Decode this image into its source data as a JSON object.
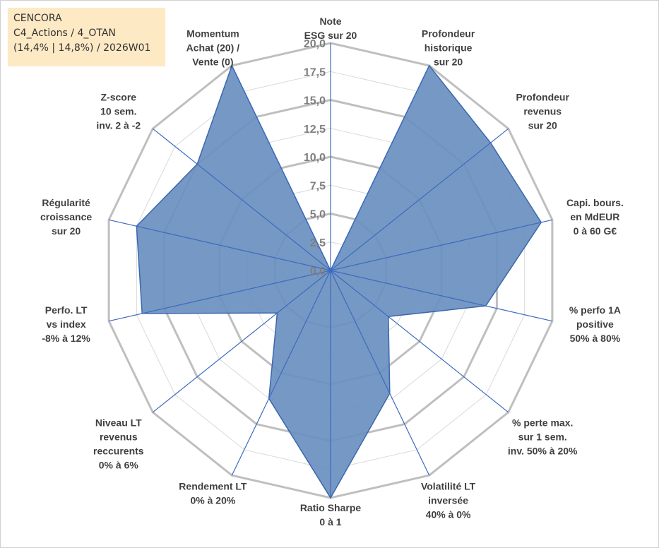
{
  "info": {
    "line1": "CENCORA",
    "line2": "C4_Actions / 4_OTAN",
    "line3": "(14,4% | 14,8%) / 2026W01"
  },
  "colors": {
    "fill": "#6a8fbf",
    "stroke": "#3a67ad",
    "spoke": "#3b6bbf",
    "ring_major": "#bfbfbf",
    "ring_minor": "#d9d9d9",
    "tick_text": "#7f7f7f",
    "label_text": "#404040",
    "info_bg": "#fde9c4"
  },
  "chart_data": {
    "type": "radar",
    "title": "",
    "rmin": 0,
    "rmax": 20,
    "major_step": 5,
    "minor_step": 2.5,
    "tick_labels": [
      "0,0",
      "2,5",
      "5,0",
      "7,5",
      "10,0",
      "12,5",
      "15,0",
      "17,5",
      "20,0"
    ],
    "series": [
      {
        "name": "CENCORA",
        "axes": [
          {
            "label": [
              "Note",
              "ESG sur 20"
            ],
            "value": 0
          },
          {
            "label": [
              "Profondeur",
              "historique",
              "sur 20"
            ],
            "value": 20
          },
          {
            "label": [
              "Profondeur",
              "revenus",
              "sur 20"
            ],
            "value": 18
          },
          {
            "label": [
              "Capi. bours.",
              "en MdEUR",
              "0 à 60 G€"
            ],
            "value": 19
          },
          {
            "label": [
              "% perfo 1A",
              "positive",
              "50% à 80%"
            ],
            "value": 14
          },
          {
            "label": [
              "% perte max.",
              "sur 1 sem.",
              "inv. 50% à 20%"
            ],
            "value": 6.5
          },
          {
            "label": [
              "Volatilité LT",
              "inversée",
              "40% à 0%"
            ],
            "value": 12
          },
          {
            "label": [
              "Ratio Sharpe",
              "0 à 1"
            ],
            "value": 20
          },
          {
            "label": [
              "Rendement LT",
              "0% à 20%"
            ],
            "value": 12.5
          },
          {
            "label": [
              "Niveau LT",
              "revenus",
              "reccurents",
              "0% à 6%"
            ],
            "value": 6
          },
          {
            "label": [
              "Perfo. LT",
              "vs index",
              "-8% à 12%"
            ],
            "value": 17
          },
          {
            "label": [
              "Régularité",
              "croissance",
              "sur 20"
            ],
            "value": 17.5
          },
          {
            "label": [
              "Z-score",
              "10 sem.",
              "inv. 2 à -2"
            ],
            "value": 15
          },
          {
            "label": [
              "Momentum",
              "Achat (20) /",
              "Vente (0)"
            ],
            "value": 20
          }
        ]
      }
    ]
  }
}
